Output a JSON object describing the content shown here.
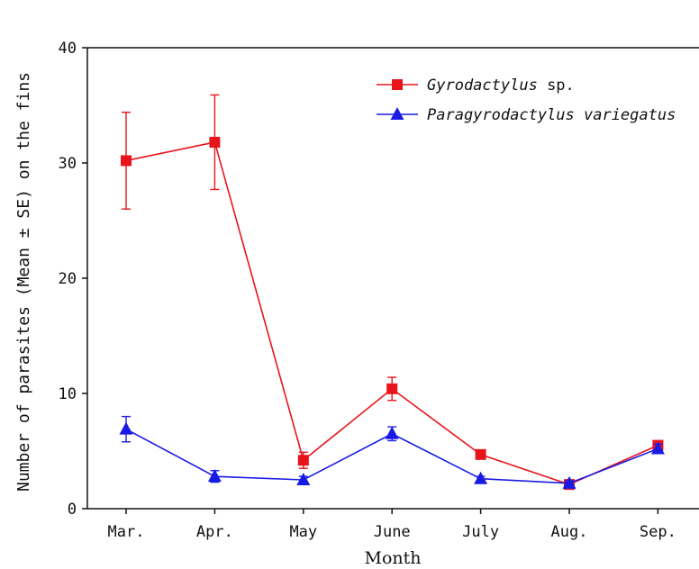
{
  "chart_data": {
    "type": "line",
    "xlabel": "Month",
    "ylabel": "Number of parasites (Mean ± SE) on the fins",
    "categories": [
      "Mar.",
      "Apr.",
      "May",
      "June",
      "July",
      "Aug.",
      "Sep."
    ],
    "ylim": [
      0,
      40
    ],
    "yticks": [
      "0",
      "10",
      "20",
      "30",
      "40"
    ],
    "grid": false,
    "legend_position": "top-right",
    "series": [
      {
        "name_italic": "Gyrodactylus",
        "name_suffix": " sp.",
        "color": "#e8141c",
        "marker": "square",
        "values": [
          30.2,
          31.8,
          4.2,
          10.4,
          4.7,
          2.1,
          5.5
        ],
        "errors": [
          4.2,
          4.1,
          0.7,
          1.0,
          0.3,
          0.2,
          0.3
        ]
      },
      {
        "name_italic": "Paragyrodactylus variegatus",
        "name_suffix": "",
        "color": "#1a1ae6",
        "marker": "triangle",
        "values": [
          6.9,
          2.8,
          2.5,
          6.5,
          2.6,
          2.2,
          5.2
        ],
        "errors": [
          1.1,
          0.5,
          0.3,
          0.6,
          0.2,
          0.2,
          0.4
        ]
      }
    ]
  }
}
